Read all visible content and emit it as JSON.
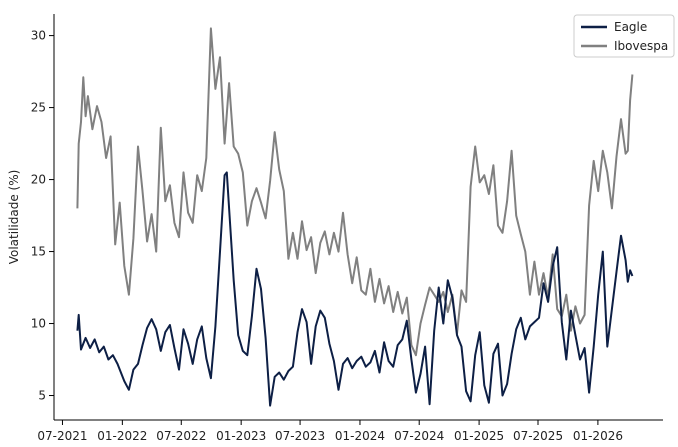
{
  "chart_data": {
    "type": "line",
    "title": "",
    "xlabel": "",
    "ylabel": "Volatilidade (%)",
    "ylim": [
      3.3,
      31.5
    ],
    "xlim": [
      "2021-06-05",
      "2026-07-20"
    ],
    "y_ticks": [
      5,
      10,
      15,
      20,
      25,
      30
    ],
    "x_ticks": [
      {
        "date": "2021-07-01",
        "label": "07-2021"
      },
      {
        "date": "2022-01-01",
        "label": "01-2022"
      },
      {
        "date": "2022-07-01",
        "label": "07-2022"
      },
      {
        "date": "2023-01-01",
        "label": "01-2023"
      },
      {
        "date": "2023-07-01",
        "label": "07-2023"
      },
      {
        "date": "2024-01-01",
        "label": "01-2024"
      },
      {
        "date": "2024-07-01",
        "label": "07-2024"
      },
      {
        "date": "2025-01-01",
        "label": "01-2025"
      },
      {
        "date": "2025-07-01",
        "label": "07-2025"
      },
      {
        "date": "2026-01-01",
        "label": "01-2026"
      }
    ],
    "grid": false,
    "legend_position": "top-right",
    "series": [
      {
        "name": "Eagle",
        "color": "#0d1f45",
        "points": [
          [
            "2021-08-16",
            9.5
          ],
          [
            "2021-08-20",
            10.6
          ],
          [
            "2021-08-27",
            8.2
          ],
          [
            "2021-09-10",
            9.0
          ],
          [
            "2021-09-24",
            8.3
          ],
          [
            "2021-10-08",
            8.9
          ],
          [
            "2021-10-22",
            8.0
          ],
          [
            "2021-11-05",
            8.4
          ],
          [
            "2021-11-19",
            7.5
          ],
          [
            "2021-12-03",
            7.8
          ],
          [
            "2021-12-17",
            7.2
          ],
          [
            "2022-01-07",
            6.0
          ],
          [
            "2022-01-21",
            5.4
          ],
          [
            "2022-02-04",
            6.8
          ],
          [
            "2022-02-18",
            7.2
          ],
          [
            "2022-03-04",
            8.5
          ],
          [
            "2022-03-18",
            9.7
          ],
          [
            "2022-04-01",
            10.3
          ],
          [
            "2022-04-15",
            9.6
          ],
          [
            "2022-04-29",
            8.1
          ],
          [
            "2022-05-13",
            9.4
          ],
          [
            "2022-05-27",
            9.9
          ],
          [
            "2022-06-10",
            8.3
          ],
          [
            "2022-06-24",
            6.8
          ],
          [
            "2022-07-08",
            9.6
          ],
          [
            "2022-07-22",
            8.6
          ],
          [
            "2022-08-05",
            7.2
          ],
          [
            "2022-08-19",
            8.9
          ],
          [
            "2022-09-02",
            9.8
          ],
          [
            "2022-09-16",
            7.6
          ],
          [
            "2022-09-30",
            6.2
          ],
          [
            "2022-10-14",
            9.8
          ],
          [
            "2022-10-28",
            15.0
          ],
          [
            "2022-11-11",
            20.3
          ],
          [
            "2022-11-18",
            20.5
          ],
          [
            "2022-11-25",
            18.0
          ],
          [
            "2022-12-09",
            13.0
          ],
          [
            "2022-12-23",
            9.2
          ],
          [
            "2023-01-06",
            8.1
          ],
          [
            "2023-01-20",
            7.8
          ],
          [
            "2023-02-03",
            10.5
          ],
          [
            "2023-02-17",
            13.8
          ],
          [
            "2023-03-03",
            12.4
          ],
          [
            "2023-03-17",
            9.0
          ],
          [
            "2023-03-31",
            4.3
          ],
          [
            "2023-04-14",
            6.3
          ],
          [
            "2023-04-28",
            6.6
          ],
          [
            "2023-05-12",
            6.1
          ],
          [
            "2023-05-26",
            6.7
          ],
          [
            "2023-06-09",
            7.0
          ],
          [
            "2023-06-23",
            9.4
          ],
          [
            "2023-07-07",
            11.0
          ],
          [
            "2023-07-21",
            10.1
          ],
          [
            "2023-08-04",
            7.2
          ],
          [
            "2023-08-18",
            9.8
          ],
          [
            "2023-09-01",
            10.9
          ],
          [
            "2023-09-15",
            10.4
          ],
          [
            "2023-09-29",
            8.6
          ],
          [
            "2023-10-13",
            7.4
          ],
          [
            "2023-10-27",
            5.4
          ],
          [
            "2023-11-10",
            7.2
          ],
          [
            "2023-11-24",
            7.6
          ],
          [
            "2023-12-08",
            6.9
          ],
          [
            "2023-12-22",
            7.4
          ],
          [
            "2024-01-05",
            7.7
          ],
          [
            "2024-01-19",
            7.0
          ],
          [
            "2024-02-02",
            7.3
          ],
          [
            "2024-02-16",
            8.1
          ],
          [
            "2024-03-01",
            6.6
          ],
          [
            "2024-03-15",
            8.7
          ],
          [
            "2024-03-29",
            7.4
          ],
          [
            "2024-04-12",
            7.0
          ],
          [
            "2024-04-26",
            8.5
          ],
          [
            "2024-05-10",
            8.9
          ],
          [
            "2024-05-24",
            10.2
          ],
          [
            "2024-06-07",
            7.5
          ],
          [
            "2024-06-21",
            5.2
          ],
          [
            "2024-07-05",
            6.5
          ],
          [
            "2024-07-19",
            8.4
          ],
          [
            "2024-08-02",
            4.4
          ],
          [
            "2024-08-16",
            9.5
          ],
          [
            "2024-08-30",
            12.5
          ],
          [
            "2024-09-13",
            10.0
          ],
          [
            "2024-09-27",
            13.0
          ],
          [
            "2024-10-11",
            11.8
          ],
          [
            "2024-10-25",
            9.2
          ],
          [
            "2024-11-08",
            8.4
          ],
          [
            "2024-11-22",
            5.3
          ],
          [
            "2024-12-06",
            4.6
          ],
          [
            "2024-12-20",
            7.8
          ],
          [
            "2025-01-03",
            9.4
          ],
          [
            "2025-01-17",
            5.7
          ],
          [
            "2025-01-31",
            4.5
          ],
          [
            "2025-02-14",
            7.9
          ],
          [
            "2025-02-28",
            8.6
          ],
          [
            "2025-03-14",
            5.0
          ],
          [
            "2025-03-28",
            5.8
          ],
          [
            "2025-04-11",
            7.9
          ],
          [
            "2025-04-25",
            9.6
          ],
          [
            "2025-05-09",
            10.4
          ],
          [
            "2025-05-23",
            8.9
          ],
          [
            "2025-06-06",
            9.8
          ],
          [
            "2025-06-20",
            10.1
          ],
          [
            "2025-07-04",
            10.4
          ],
          [
            "2025-07-18",
            12.8
          ],
          [
            "2025-08-01",
            11.5
          ],
          [
            "2025-08-15",
            14.0
          ],
          [
            "2025-08-29",
            15.3
          ],
          [
            "2025-09-12",
            10.1
          ],
          [
            "2025-09-26",
            7.5
          ],
          [
            "2025-10-10",
            10.9
          ],
          [
            "2025-10-24",
            9.2
          ],
          [
            "2025-11-07",
            7.5
          ],
          [
            "2025-11-21",
            8.3
          ],
          [
            "2025-12-05",
            5.2
          ],
          [
            "2025-12-19",
            8.4
          ],
          [
            "2026-01-02",
            12.0
          ],
          [
            "2026-01-16",
            15.0
          ],
          [
            "2026-01-30",
            8.4
          ],
          [
            "2026-02-13",
            11.0
          ],
          [
            "2026-02-27",
            13.6
          ],
          [
            "2026-03-13",
            16.1
          ],
          [
            "2026-03-27",
            14.4
          ],
          [
            "2026-04-03",
            12.9
          ],
          [
            "2026-04-10",
            13.7
          ],
          [
            "2026-04-17",
            13.3
          ]
        ]
      },
      {
        "name": "Ibovespa",
        "color": "#808080",
        "points": [
          [
            "2021-08-16",
            18.0
          ],
          [
            "2021-08-20",
            22.5
          ],
          [
            "2021-08-27",
            24.0
          ],
          [
            "2021-09-03",
            27.1
          ],
          [
            "2021-09-10",
            24.4
          ],
          [
            "2021-09-17",
            25.8
          ],
          [
            "2021-10-01",
            23.5
          ],
          [
            "2021-10-15",
            25.1
          ],
          [
            "2021-10-29",
            24.0
          ],
          [
            "2021-11-12",
            21.5
          ],
          [
            "2021-11-26",
            23.0
          ],
          [
            "2021-12-10",
            15.5
          ],
          [
            "2021-12-24",
            18.4
          ],
          [
            "2022-01-07",
            14.0
          ],
          [
            "2022-01-21",
            12.0
          ],
          [
            "2022-02-04",
            15.9
          ],
          [
            "2022-02-18",
            22.3
          ],
          [
            "2022-03-04",
            19.2
          ],
          [
            "2022-03-18",
            15.7
          ],
          [
            "2022-04-01",
            17.6
          ],
          [
            "2022-04-15",
            15.0
          ],
          [
            "2022-04-29",
            23.6
          ],
          [
            "2022-05-13",
            18.5
          ],
          [
            "2022-05-27",
            19.6
          ],
          [
            "2022-06-10",
            17.0
          ],
          [
            "2022-06-24",
            16.0
          ],
          [
            "2022-07-08",
            20.5
          ],
          [
            "2022-07-22",
            17.7
          ],
          [
            "2022-08-05",
            17.0
          ],
          [
            "2022-08-19",
            20.3
          ],
          [
            "2022-09-02",
            19.2
          ],
          [
            "2022-09-16",
            21.5
          ],
          [
            "2022-09-30",
            30.5
          ],
          [
            "2022-10-14",
            26.3
          ],
          [
            "2022-10-28",
            28.5
          ],
          [
            "2022-11-11",
            22.5
          ],
          [
            "2022-11-25",
            26.7
          ],
          [
            "2022-12-09",
            22.3
          ],
          [
            "2022-12-23",
            21.8
          ],
          [
            "2023-01-06",
            20.5
          ],
          [
            "2023-01-20",
            16.8
          ],
          [
            "2023-02-03",
            18.5
          ],
          [
            "2023-02-17",
            19.4
          ],
          [
            "2023-03-03",
            18.4
          ],
          [
            "2023-03-17",
            17.3
          ],
          [
            "2023-03-31",
            19.9
          ],
          [
            "2023-04-14",
            23.3
          ],
          [
            "2023-04-28",
            20.7
          ],
          [
            "2023-05-12",
            19.2
          ],
          [
            "2023-05-26",
            14.5
          ],
          [
            "2023-06-09",
            16.3
          ],
          [
            "2023-06-23",
            14.5
          ],
          [
            "2023-07-07",
            17.1
          ],
          [
            "2023-07-21",
            15.1
          ],
          [
            "2023-08-04",
            16.0
          ],
          [
            "2023-08-18",
            13.5
          ],
          [
            "2023-09-01",
            15.6
          ],
          [
            "2023-09-15",
            16.4
          ],
          [
            "2023-09-29",
            14.8
          ],
          [
            "2023-10-13",
            16.3
          ],
          [
            "2023-10-27",
            15.0
          ],
          [
            "2023-11-10",
            17.7
          ],
          [
            "2023-11-24",
            14.8
          ],
          [
            "2023-12-08",
            12.8
          ],
          [
            "2023-12-22",
            14.6
          ],
          [
            "2024-01-05",
            12.3
          ],
          [
            "2024-01-19",
            12.0
          ],
          [
            "2024-02-02",
            13.8
          ],
          [
            "2024-02-16",
            11.5
          ],
          [
            "2024-03-01",
            13.1
          ],
          [
            "2024-03-15",
            11.4
          ],
          [
            "2024-03-29",
            12.6
          ],
          [
            "2024-04-12",
            10.8
          ],
          [
            "2024-04-26",
            12.2
          ],
          [
            "2024-05-10",
            10.7
          ],
          [
            "2024-05-24",
            11.8
          ],
          [
            "2024-06-07",
            8.5
          ],
          [
            "2024-06-21",
            7.8
          ],
          [
            "2024-07-05",
            10.0
          ],
          [
            "2024-07-19",
            11.3
          ],
          [
            "2024-08-02",
            12.5
          ],
          [
            "2024-08-16",
            12.0
          ],
          [
            "2024-08-30",
            11.5
          ],
          [
            "2024-09-13",
            12.2
          ],
          [
            "2024-09-27",
            10.8
          ],
          [
            "2024-10-11",
            12.0
          ],
          [
            "2024-10-25",
            9.3
          ],
          [
            "2024-11-08",
            12.3
          ],
          [
            "2024-11-22",
            11.5
          ],
          [
            "2024-12-06",
            19.5
          ],
          [
            "2024-12-20",
            22.3
          ],
          [
            "2025-01-03",
            19.8
          ],
          [
            "2025-01-17",
            20.3
          ],
          [
            "2025-01-31",
            19.0
          ],
          [
            "2025-02-14",
            21.0
          ],
          [
            "2025-02-28",
            16.8
          ],
          [
            "2025-03-14",
            16.3
          ],
          [
            "2025-03-28",
            18.5
          ],
          [
            "2025-04-11",
            22.0
          ],
          [
            "2025-04-25",
            17.5
          ],
          [
            "2025-05-09",
            16.2
          ],
          [
            "2025-05-23",
            15.0
          ],
          [
            "2025-06-06",
            12.0
          ],
          [
            "2025-06-20",
            14.3
          ],
          [
            "2025-07-04",
            12.0
          ],
          [
            "2025-07-18",
            13.5
          ],
          [
            "2025-08-01",
            11.8
          ],
          [
            "2025-08-15",
            14.8
          ],
          [
            "2025-08-29",
            11.0
          ],
          [
            "2025-09-12",
            10.5
          ],
          [
            "2025-09-26",
            12.0
          ],
          [
            "2025-10-10",
            9.5
          ],
          [
            "2025-10-24",
            11.2
          ],
          [
            "2025-11-07",
            10.0
          ],
          [
            "2025-11-21",
            10.6
          ],
          [
            "2025-12-05",
            18.2
          ],
          [
            "2025-12-19",
            21.3
          ],
          [
            "2026-01-02",
            19.2
          ],
          [
            "2026-01-16",
            22.0
          ],
          [
            "2026-01-30",
            20.5
          ],
          [
            "2026-02-13",
            18.0
          ],
          [
            "2026-02-27",
            21.6
          ],
          [
            "2026-03-13",
            24.2
          ],
          [
            "2026-03-27",
            21.8
          ],
          [
            "2026-04-03",
            22.0
          ],
          [
            "2026-04-10",
            25.5
          ],
          [
            "2026-04-17",
            27.3
          ]
        ]
      }
    ]
  }
}
